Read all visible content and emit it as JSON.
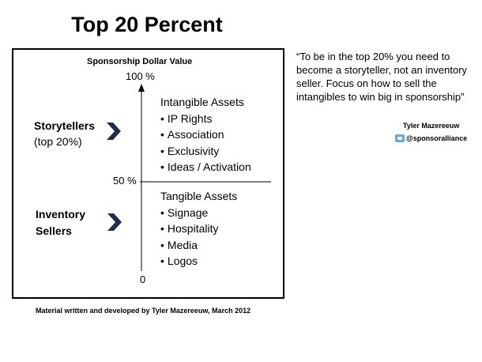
{
  "title": "Top 20 Percent",
  "diagram": {
    "axis_title": "Sponsorship  Dollar Value",
    "ticks": {
      "top": "100 %",
      "middle": "50 %",
      "bottom": "0"
    },
    "storytellers": {
      "line1": "Storytellers",
      "line2": "(top 20%)"
    },
    "inventory": {
      "line1": "Inventory",
      "line2": "Sellers"
    },
    "intangible": {
      "heading": "Intangible Assets",
      "items": [
        "IP Rights",
        "Association",
        "Exclusivity",
        "Ideas / Activation"
      ]
    },
    "tangible": {
      "heading": "Tangible Assets",
      "items": [
        "Signage",
        "Hospitality",
        "Media",
        "Logos"
      ]
    },
    "colors": {
      "chevron": "#1f2d4d",
      "line": "#000000"
    }
  },
  "quote": {
    "text": "“To be in the top 20% you need to become a storyteller, not an inventory seller.  Focus on how to sell the intangibles to win big in sponsorship”",
    "author": "Tyler Mazereeuw",
    "handle": "@sponsoralliance",
    "handle_icon": "twitter-icon"
  },
  "credit": "Material written and developed by Tyler Mazereeuw, March 2012"
}
